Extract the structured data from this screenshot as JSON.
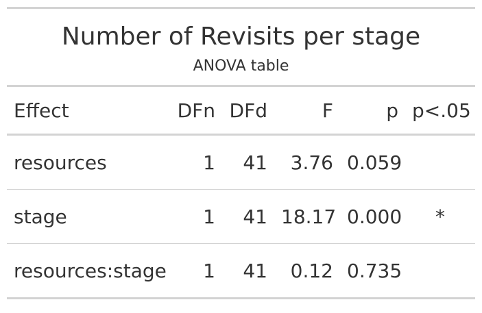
{
  "title": "Number of Revisits per stage",
  "subtitle": "ANOVA table",
  "columns": [
    "Effect",
    "DFn",
    "DFd",
    "F",
    "p",
    "p<.05"
  ],
  "rows": [
    {
      "effect": "resources",
      "dfn": "1",
      "dfd": "41",
      "f": "3.76",
      "p": "0.059",
      "sig": ""
    },
    {
      "effect": "stage",
      "dfn": "1",
      "dfd": "41",
      "f": "18.17",
      "p": "0.000",
      "sig": "*"
    },
    {
      "effect": "resources:stage",
      "dfn": "1",
      "dfd": "41",
      "f": "0.12",
      "p": "0.735",
      "sig": ""
    }
  ],
  "colors": {
    "rule": "#d3d3d3",
    "text": "#333333"
  }
}
